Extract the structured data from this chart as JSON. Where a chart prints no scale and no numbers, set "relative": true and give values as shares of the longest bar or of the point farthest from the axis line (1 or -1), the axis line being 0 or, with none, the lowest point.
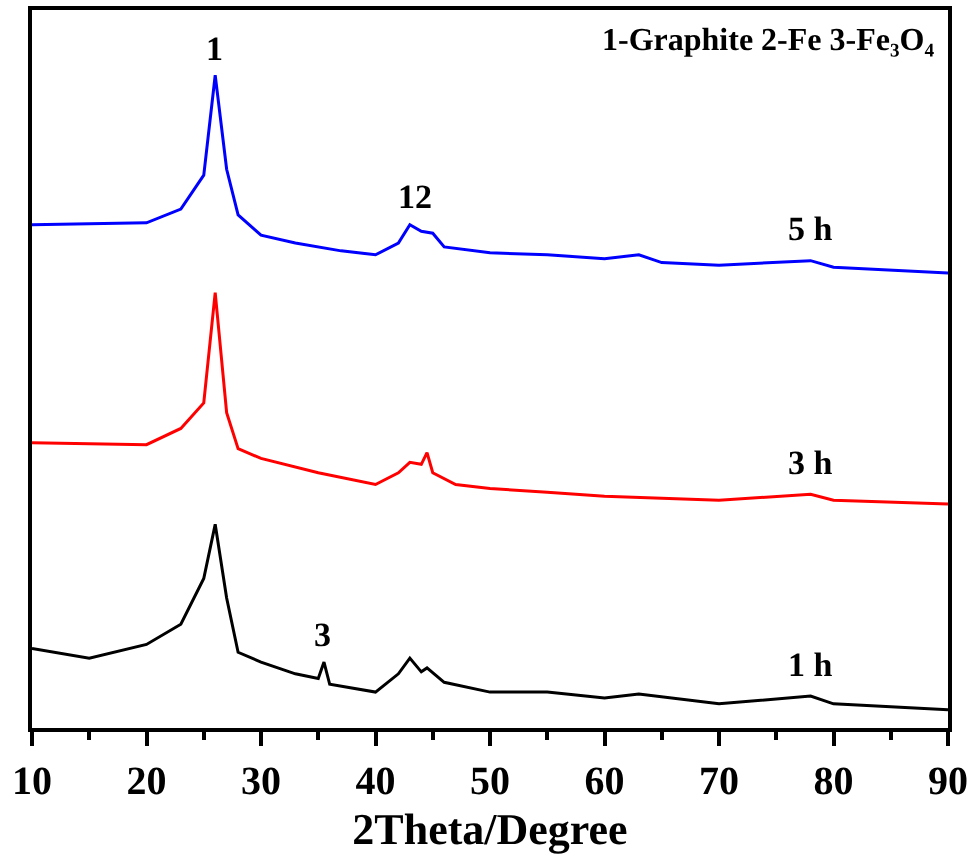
{
  "chart_data": {
    "type": "line",
    "relative": true,
    "xlabel": "2Theta/Degree",
    "xlim": [
      10,
      90
    ],
    "xticks": [
      10,
      20,
      30,
      40,
      50,
      60,
      70,
      80,
      90
    ],
    "tick_labels": "x",
    "grid": false,
    "legend": false,
    "marker": "none",
    "line_style": "solid",
    "annotations": [
      "1-Graphite 2-Fe 3-Fe₃O₄",
      {
        "text": "1",
        "x": 26,
        "y": 1
      },
      {
        "text": "12",
        "x": 43.5,
        "y": 0.771
      },
      {
        "text": "3",
        "x": 35.5,
        "y": 0.101
      }
    ],
    "series": [
      {
        "name": "5 h",
        "color": "#0000ff",
        "x": [
          10,
          20,
          23,
          25,
          26,
          27,
          28,
          30,
          33,
          37,
          40,
          42,
          43,
          44,
          45,
          46,
          50,
          55,
          60,
          63,
          65,
          70,
          78,
          80,
          90
        ],
        "values": [
          0.771,
          0.774,
          0.795,
          0.847,
          1,
          0.856,
          0.786,
          0.755,
          0.743,
          0.731,
          0.725,
          0.743,
          0.771,
          0.761,
          0.758,
          0.737,
          0.728,
          0.725,
          0.719,
          0.725,
          0.713,
          0.709,
          0.716,
          0.706,
          0.697
        ]
      },
      {
        "name": "3 h",
        "color": "#ff0000",
        "x": [
          10,
          20,
          23,
          25,
          26,
          27,
          28,
          30,
          35,
          40,
          42,
          43,
          44,
          44.5,
          45,
          47,
          50,
          55,
          60,
          70,
          78,
          80,
          90
        ],
        "values": [
          0.437,
          0.434,
          0.459,
          0.498,
          0.667,
          0.483,
          0.428,
          0.413,
          0.391,
          0.373,
          0.391,
          0.407,
          0.404,
          0.422,
          0.391,
          0.373,
          0.367,
          0.361,
          0.355,
          0.349,
          0.358,
          0.349,
          0.343
        ]
      },
      {
        "name": "1 h",
        "color": "#000000",
        "x": [
          10,
          15,
          20,
          23,
          25,
          26,
          27,
          28,
          30,
          33,
          35,
          35.5,
          36,
          40,
          42,
          43,
          44,
          44.5,
          46,
          50,
          55,
          60,
          63,
          70,
          78,
          80,
          90
        ],
        "values": [
          0.122,
          0.107,
          0.128,
          0.159,
          0.229,
          0.312,
          0.199,
          0.116,
          0.101,
          0.083,
          0.076,
          0.101,
          0.067,
          0.055,
          0.083,
          0.107,
          0.086,
          0.092,
          0.07,
          0.055,
          0.055,
          0.046,
          0.052,
          0.037,
          0.049,
          0.037,
          0.028
        ]
      }
    ]
  }
}
